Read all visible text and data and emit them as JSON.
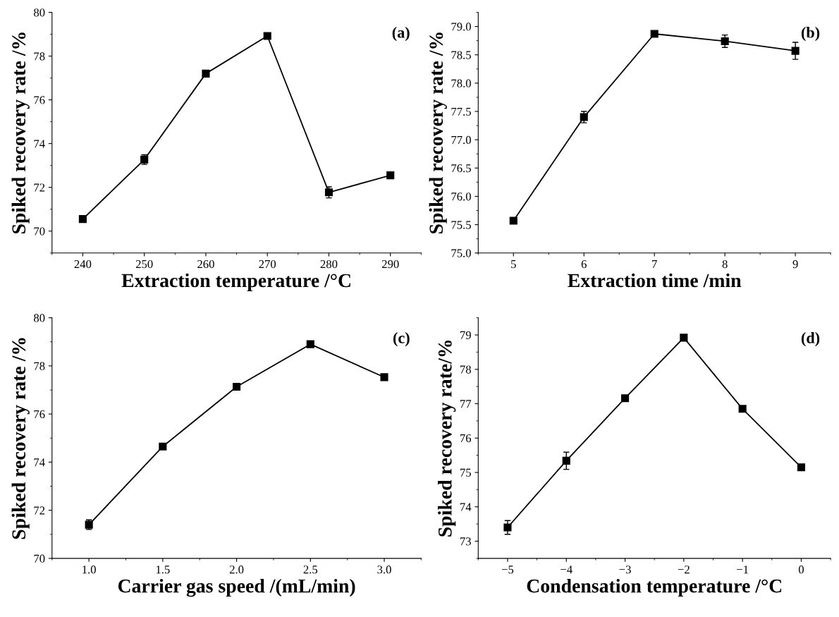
{
  "chart_data": [
    {
      "type": "line",
      "xlabel": "Extraction temperature /°C",
      "ylabel": "Spiked recovery rate /%",
      "annotations": [
        "(a)"
      ],
      "marker": "square",
      "line_style": "solid",
      "x": [
        240,
        250,
        260,
        270,
        280,
        290
      ],
      "series": [
        {
          "color": "#000000",
          "values": [
            70.55,
            73.27,
            77.2,
            78.92,
            71.77,
            72.55
          ],
          "errors": [
            0.05,
            0.22,
            0.05,
            0.05,
            0.25,
            0.05
          ]
        }
      ],
      "xlim": [
        235,
        295
      ],
      "xticks": [
        240,
        250,
        260,
        270,
        280,
        290
      ],
      "ylim": [
        69,
        80
      ],
      "yticks": [
        70,
        72,
        74,
        76,
        78,
        80
      ]
    },
    {
      "type": "line",
      "xlabel": "Extraction time /min",
      "ylabel": "Spiked recovery rate /%",
      "annotations": [
        "(b)"
      ],
      "marker": "square",
      "line_style": "solid",
      "x": [
        5,
        6,
        7,
        8,
        9
      ],
      "series": [
        {
          "color": "#000000",
          "values": [
            75.57,
            77.4,
            78.87,
            78.74,
            78.57
          ],
          "errors": [
            0.05,
            0.1,
            0.04,
            0.11,
            0.15
          ]
        }
      ],
      "xlim": [
        4.5,
        9.5
      ],
      "xticks": [
        5,
        6,
        7,
        8,
        9
      ],
      "ylim": [
        75.0,
        79.25
      ],
      "yticks": [
        {
          "value": 75.0,
          "label": "75.0"
        },
        {
          "value": 75.5,
          "label": "75.5"
        },
        {
          "value": 76.0,
          "label": "76.0"
        },
        {
          "value": 76.5,
          "label": "76.5"
        },
        {
          "value": 77.0,
          "label": "77.0"
        },
        {
          "value": 77.5,
          "label": "77.5"
        },
        {
          "value": 78.0,
          "label": "78.0"
        },
        {
          "value": 78.5,
          "label": "78.5"
        },
        {
          "value": 79.0,
          "label": "79.0"
        }
      ]
    },
    {
      "type": "line",
      "xlabel": "Carrier gas speed /(mL/min)",
      "ylabel": "Spiked recovery rate /%",
      "annotations": [
        "(c)"
      ],
      "marker": "square",
      "line_style": "solid",
      "x": [
        1.0,
        1.5,
        2.0,
        2.5,
        3.0
      ],
      "series": [
        {
          "color": "#000000",
          "values": [
            71.4,
            74.65,
            77.13,
            78.9,
            77.53
          ],
          "errors": [
            0.2,
            0.1,
            0.05,
            0.05,
            0.05
          ]
        }
      ],
      "xlim": [
        0.75,
        3.25
      ],
      "xticks": [
        {
          "value": 1.0,
          "label": "1.0"
        },
        {
          "value": 1.5,
          "label": "1.5"
        },
        {
          "value": 2.0,
          "label": "2.0"
        },
        {
          "value": 2.5,
          "label": "2.5"
        },
        {
          "value": 3.0,
          "label": "3.0"
        }
      ],
      "ylim": [
        70,
        80
      ],
      "yticks": [
        70,
        72,
        74,
        76,
        78,
        80
      ]
    },
    {
      "type": "line",
      "xlabel": "Condensation temperature /°C",
      "ylabel": "Spiked recovery rate/%",
      "annotations": [
        "(d)"
      ],
      "marker": "square",
      "line_style": "solid",
      "x": [
        -5,
        -4,
        -3,
        -2,
        -1,
        0
      ],
      "series": [
        {
          "color": "#000000",
          "values": [
            73.4,
            75.34,
            77.16,
            78.92,
            76.85,
            75.15
          ],
          "errors": [
            0.2,
            0.25,
            0.04,
            0.03,
            0.04,
            0.04
          ]
        }
      ],
      "xlim": [
        -5.5,
        0.5
      ],
      "xticks": [
        {
          "value": -5,
          "label": "−5"
        },
        {
          "value": -4,
          "label": "−4"
        },
        {
          "value": -3,
          "label": "−3"
        },
        {
          "value": -2,
          "label": "−2"
        },
        {
          "value": -1,
          "label": "−1"
        },
        0
      ],
      "ylim": [
        72.5,
        79.5
      ],
      "yticks": [
        73,
        74,
        75,
        76,
        77,
        78,
        79
      ]
    }
  ]
}
